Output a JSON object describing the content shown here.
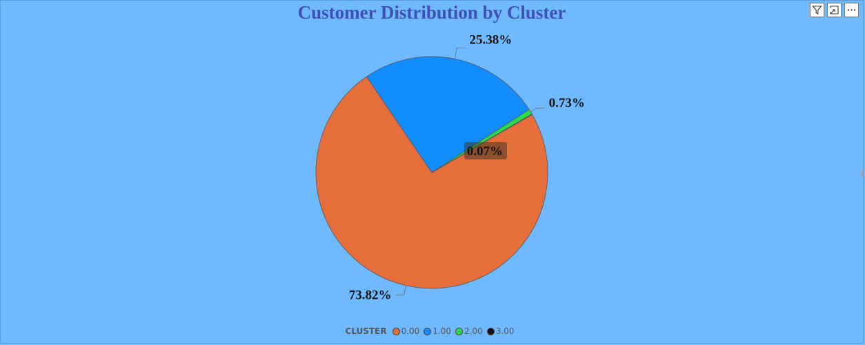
{
  "toolbar": {
    "filter_icon": "filter-icon",
    "focus_icon": "focus-mode-icon",
    "more_icon": "more-options-icon"
  },
  "chart_data": {
    "type": "pie",
    "title": "Customer Distribution by Cluster",
    "legend_title": "CLUSTER",
    "legend_position": "bottom-center",
    "start_angle_deg": -30,
    "direction": "clockwise",
    "slices": [
      {
        "label": "0.00",
        "value": 73.82,
        "data_label": "73.82%",
        "color": "#E56E3A"
      },
      {
        "label": "1.00",
        "value": 25.38,
        "data_label": "25.38%",
        "color": "#118DFF"
      },
      {
        "label": "2.00",
        "value": 0.73,
        "data_label": "0.73%",
        "color": "#2BDB4A"
      },
      {
        "label": "3.00",
        "value": 0.07,
        "data_label": "0.07%",
        "color": "#111111"
      }
    ]
  }
}
